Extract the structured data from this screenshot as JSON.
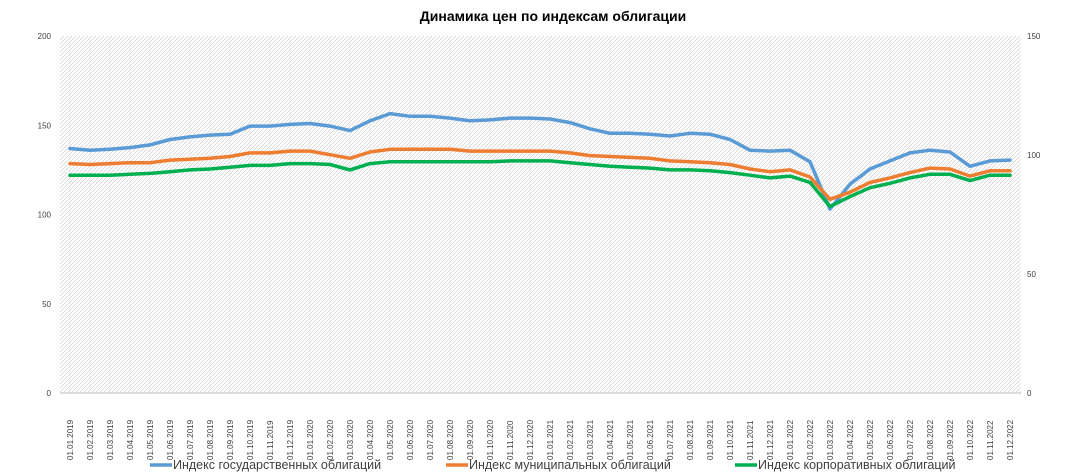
{
  "chart_data": {
    "type": "line",
    "title": "Динамика цен по индексам облигации",
    "ylim_left": [
      0,
      200
    ],
    "yticks_left": [
      "0",
      "50",
      "100",
      "150",
      "200"
    ],
    "ylim_right": [
      0,
      150
    ],
    "yticks_right": [
      "0",
      "50",
      "100",
      "150"
    ],
    "grid": "hatched-background",
    "legend_position": "bottom",
    "x": [
      "01.01.2019",
      "01.02.2019",
      "01.03.2019",
      "01.04.2019",
      "01.05.2019",
      "01.06.2019",
      "01.07.2019",
      "01.08.2019",
      "01.09.2019",
      "01.10.2019",
      "01.11.2019",
      "01.12.2019",
      "01.01.2020",
      "01.02.2020",
      "01.03.2020",
      "01.04.2020",
      "01.05.2020",
      "01.06.2020",
      "01.07.2020",
      "01.08.2020",
      "01.09.2020",
      "01.10.2020",
      "01.11.2020",
      "01.12.2020",
      "01.01.2021",
      "01.02.2021",
      "01.03.2021",
      "01.04.2021",
      "01.05.2021",
      "01.06.2021",
      "01.07.2021",
      "01.08.2021",
      "01.09.2021",
      "01.10.2021",
      "01.11.2021",
      "01.12.2021",
      "01.01.2022",
      "01.02.2022",
      "01.03.2022",
      "01.04.2022",
      "01.05.2022",
      "01.06.2022",
      "01.07.2022",
      "01.08.2022",
      "01.09.2022",
      "01.10.2022",
      "01.11.2022",
      "01.12.2022"
    ],
    "series": [
      {
        "name": "Индекс государственных облигаций",
        "color": "#5B9BD5",
        "axis": "left",
        "values": [
          137,
          136,
          136.5,
          137.5,
          139,
          142,
          143.5,
          144.5,
          145,
          149.5,
          149.5,
          150.5,
          151,
          149.5,
          147,
          152.5,
          156.5,
          155,
          155,
          154,
          152.5,
          153,
          154,
          154,
          153.5,
          151.5,
          148,
          145.5,
          145.5,
          145,
          144,
          145.5,
          145,
          142,
          136,
          135.5,
          136,
          129.5,
          103,
          117,
          125.5,
          130,
          134.5,
          136,
          135,
          127,
          130,
          130.5
        ]
      },
      {
        "name": "Индекс муниципальных облигаций",
        "color": "#ED7D31",
        "axis": "left",
        "values": [
          128.5,
          128,
          128.5,
          129,
          129,
          130.5,
          131,
          131.5,
          132.5,
          134.5,
          134.5,
          135.5,
          135.5,
          133.5,
          131.5,
          135,
          136.5,
          136.5,
          136.5,
          136.5,
          135.5,
          135.5,
          135.5,
          135.5,
          135.5,
          134.5,
          133,
          132.5,
          132,
          131.5,
          130,
          129.5,
          129,
          128,
          125.5,
          124,
          125,
          121,
          108.5,
          112.5,
          118,
          120.5,
          123.5,
          126,
          125.5,
          121.5,
          124.5,
          124.5
        ]
      },
      {
        "name": "Индекс корпоративных облигаций",
        "color": "#00B050",
        "axis": "left",
        "values": [
          122,
          122,
          122,
          122.5,
          123,
          124,
          125,
          125.5,
          126.5,
          127.5,
          127.5,
          128.5,
          128.5,
          128,
          125,
          128.5,
          129.5,
          129.5,
          129.5,
          129.5,
          129.5,
          129.5,
          130,
          130,
          130,
          129,
          128,
          127,
          126.5,
          126,
          125,
          125,
          124.5,
          123.5,
          122,
          120.5,
          121.5,
          118,
          104.5,
          110,
          115,
          117.5,
          120.5,
          122.5,
          122.5,
          119,
          122,
          122
        ]
      }
    ]
  }
}
